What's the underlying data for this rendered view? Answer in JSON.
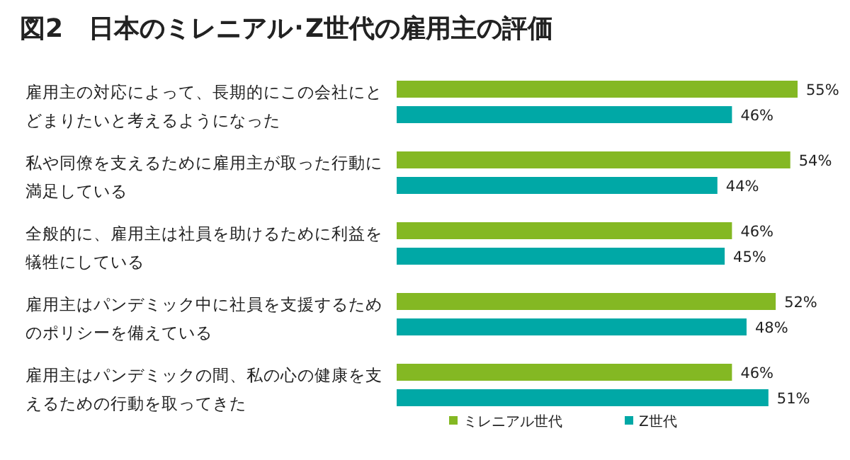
{
  "chart_data": {
    "type": "bar",
    "orientation": "horizontal",
    "title": "図2　日本のミレニアル･Z世代の雇用主の評価",
    "categories": [
      "雇用主の対応によって、長期的にこの会社にとどまりたいと考えるようになった",
      "私や同僚を支えるために雇用主が取った行動に満足している",
      "全般的に、雇用主は社員を助けるために利益を犠牲にしている",
      "雇用主はパンデミック中に社員を支援するためのポリシーを備えている",
      "雇用主はパンデミックの間、私の心の健康を支えるための行動を取ってきた"
    ],
    "series": [
      {
        "name": "ミレニアル世代",
        "color": "#84b823",
        "values": [
          55,
          54,
          46,
          52,
          46
        ],
        "value_labels": [
          "55%",
          "54%",
          "46%",
          "52%",
          "46%"
        ]
      },
      {
        "name": "Z世代",
        "color": "#00a8a6",
        "values": [
          46,
          44,
          45,
          48,
          51
        ],
        "value_labels": [
          "46%",
          "44%",
          "45%",
          "48%",
          "51%"
        ]
      }
    ],
    "legend": "bottom"
  }
}
